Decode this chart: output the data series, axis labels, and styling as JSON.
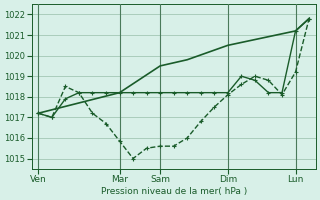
{
  "title": "Pression niveau de la mer( hPa )",
  "ylabel": "",
  "xlabel": "Pression niveau de la mer( hPa )",
  "ylim": [
    1014.5,
    1022.5
  ],
  "yticks": [
    1015,
    1016,
    1017,
    1018,
    1019,
    1020,
    1021,
    1022
  ],
  "bg_color": "#d8f0e8",
  "grid_color": "#aaccbb",
  "line_color": "#1a5c2a",
  "day_labels": [
    "Ven",
    "Mar",
    "Sam",
    "Dim",
    "Lun"
  ],
  "day_positions": [
    0,
    6,
    9,
    14,
    19
  ],
  "line1_x": [
    0,
    1,
    2,
    3,
    4,
    5,
    6,
    7,
    8,
    9,
    10,
    11,
    12,
    13,
    14,
    15,
    16,
    17,
    18,
    19,
    20
  ],
  "line1_y": [
    1017.2,
    1017.0,
    1017.9,
    1018.2,
    1018.2,
    1018.2,
    1018.2,
    1018.2,
    1018.2,
    1018.2,
    1018.2,
    1018.2,
    1018.2,
    1018.2,
    1018.2,
    1019.0,
    1018.8,
    1018.2,
    1018.2,
    1021.2,
    1021.8
  ],
  "line2_x": [
    0,
    1,
    2,
    3,
    4,
    5,
    6,
    7,
    8,
    9,
    10,
    11,
    12,
    13,
    14,
    15,
    16,
    17,
    18,
    19,
    20
  ],
  "line2_y": [
    1017.2,
    1017.0,
    1018.5,
    1018.2,
    1017.2,
    1016.7,
    1015.85,
    1015.0,
    1015.5,
    1015.6,
    1015.6,
    1016.0,
    1016.8,
    1017.5,
    1018.1,
    1018.6,
    1019.0,
    1018.8,
    1018.1,
    1019.2,
    1021.8
  ],
  "line3_x": [
    0,
    6,
    9,
    11,
    14,
    19,
    20
  ],
  "line3_y": [
    1017.2,
    1018.2,
    1019.5,
    1019.8,
    1020.5,
    1021.2,
    1021.8
  ]
}
